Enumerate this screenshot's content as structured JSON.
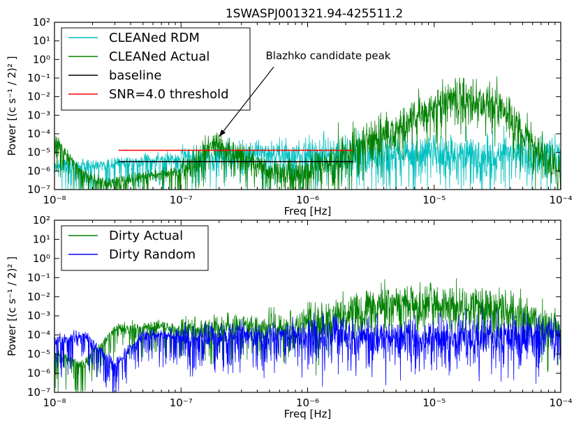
{
  "title": "1SWASPJ001321.94-425511.2",
  "chart_data": [
    {
      "type": "line",
      "panel": "top",
      "xscale": "log",
      "yscale": "log",
      "xlim": [
        1e-08,
        0.0001
      ],
      "ylim": [
        1e-07,
        100
      ],
      "xlabel": "Freq [Hz]",
      "ylabel": "Power [(c s⁻¹ / 2)² ]",
      "x_tick_labels": [
        "10⁻⁸",
        "10⁻⁷",
        "10⁻⁶",
        "10⁻⁵",
        "10⁻⁴"
      ],
      "y_tick_labels": [
        "10⁻⁷",
        "10⁻⁶",
        "10⁻⁵",
        "10⁻⁴",
        "10⁻³",
        "10⁻²",
        "10⁻¹",
        "10⁰",
        "10¹",
        "10²"
      ],
      "legend_position": "top-left",
      "grid": false,
      "series": [
        {
          "name": "CLEANed RDM",
          "color": "#00bfbf",
          "style": "noisy spectrum",
          "x": [
            1e-08,
            2e-08,
            4e-08,
            7e-08,
            1e-07,
            2e-07,
            5e-07,
            1e-06,
            3e-06,
            1e-05,
            3e-05,
            0.0001
          ],
          "y": [
            2e-06,
            2e-06,
            3e-06,
            5e-06,
            5e-06,
            8e-06,
            1e-05,
            1e-05,
            1e-05,
            1e-05,
            1e-05,
            1e-05
          ]
        },
        {
          "name": "CLEANed Actual",
          "color": "#008000",
          "style": "noisy spectrum",
          "x": [
            1e-08,
            1.6e-08,
            2.5e-08,
            5e-08,
            1e-07,
            1.9e-07,
            5e-07,
            1e-06,
            1.57e-05,
            3.1e-05,
            0.0001
          ],
          "y": [
            6e-05,
            1e-06,
            2e-07,
            5e-07,
            1e-06,
            4e-05,
            1e-06,
            1e-06,
            0.015,
            0.005,
            1e-06
          ]
        },
        {
          "name": "baseline",
          "color": "#000000",
          "style": "flat",
          "x": [
            3.2e-08,
            2.3e-06
          ],
          "y": [
            3.2e-06,
            3.2e-06
          ]
        },
        {
          "name": "SNR=4.0 threshold",
          "color": "#ff0000",
          "style": "flat",
          "x": [
            3.2e-08,
            2.3e-06
          ],
          "y": [
            1.3e-05,
            1.3e-05
          ]
        }
      ],
      "annotations": [
        {
          "text": "Blazhko candidate peak",
          "x": 1.9e-07,
          "y": 3.5e-05
        }
      ]
    },
    {
      "type": "line",
      "panel": "bottom",
      "xscale": "log",
      "yscale": "log",
      "xlim": [
        1e-08,
        0.0001
      ],
      "ylim": [
        1e-07,
        100
      ],
      "xlabel": "Freq [Hz]",
      "ylabel": "Power [(c s⁻¹ / 2)² ]",
      "x_tick_labels": [
        "10⁻⁸",
        "10⁻⁷",
        "10⁻⁶",
        "10⁻⁵",
        "10⁻⁴"
      ],
      "y_tick_labels": [
        "10⁻⁷",
        "10⁻⁶",
        "10⁻⁵",
        "10⁻⁴",
        "10⁻³",
        "10⁻²",
        "10⁻¹",
        "10⁰",
        "10¹",
        "10²"
      ],
      "legend_position": "top-left",
      "grid": false,
      "series": [
        {
          "name": "Dirty Actual",
          "color": "#008000",
          "style": "noisy spectrum",
          "x": [
            1e-08,
            1.7e-08,
            3e-08,
            7e-08,
            1e-07,
            3e-07,
            1e-06,
            4e-06,
            1.57e-05,
            3.1e-05,
            0.0001
          ],
          "y": [
            1e-05,
            3e-06,
            0.0002,
            0.0003,
            0.0002,
            0.0003,
            0.0005,
            0.005,
            0.005,
            0.003,
            0.0002
          ]
        },
        {
          "name": "Dirty Random",
          "color": "#0000ff",
          "style": "noisy spectrum",
          "x": [
            1e-08,
            1.7e-08,
            3e-08,
            5e-08,
            1e-07,
            3e-07,
            1e-06,
            1e-05,
            0.0001
          ],
          "y": [
            5e-05,
            0.0001,
            3e-06,
            0.0001,
            0.0001,
            0.0001,
            0.0001,
            0.0001,
            0.0001
          ]
        }
      ]
    }
  ]
}
